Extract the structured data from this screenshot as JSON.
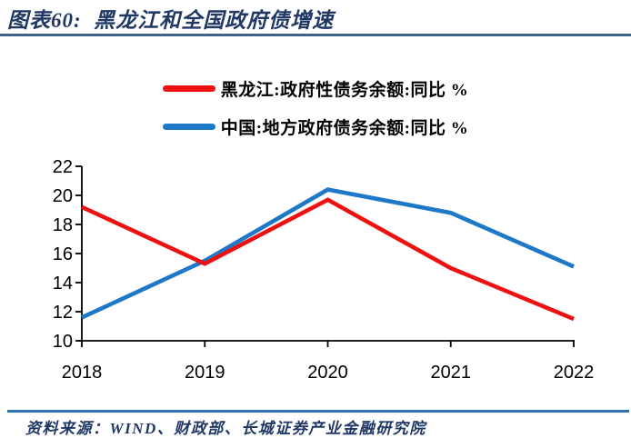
{
  "header": {
    "title": "图表60:  黑龙江和全国政府债增速"
  },
  "chart_data": {
    "type": "line",
    "title": "",
    "xlabel": "",
    "ylabel": "",
    "categories": [
      "2018",
      "2019",
      "2020",
      "2021",
      "2022"
    ],
    "series": [
      {
        "name": "黑龙江:政府性债务余额:同比 %",
        "color": "#ee1111",
        "values": [
          19.2,
          15.3,
          19.7,
          15.0,
          11.5
        ]
      },
      {
        "name": "中国:地方政府债务余额:同比 %",
        "color": "#1e78c8",
        "values": [
          11.6,
          15.5,
          20.4,
          18.8,
          15.1
        ]
      }
    ],
    "ylim": [
      10,
      22
    ],
    "ytick_step": 2,
    "yticks": [
      10,
      12,
      14,
      16,
      18,
      20,
      22
    ],
    "grid": false,
    "legend_position": "top"
  },
  "footer": {
    "source": "资料来源：WIND、财政部、长城证券产业金融研究院"
  },
  "colors": {
    "title_text": "#1f3864",
    "source_text": "#1f3864",
    "divider_top": "#3d6488",
    "divider_bottom": "#2e74b5",
    "axis": "#000000",
    "series_red": "#ee1111",
    "series_blue": "#1e78c8"
  }
}
